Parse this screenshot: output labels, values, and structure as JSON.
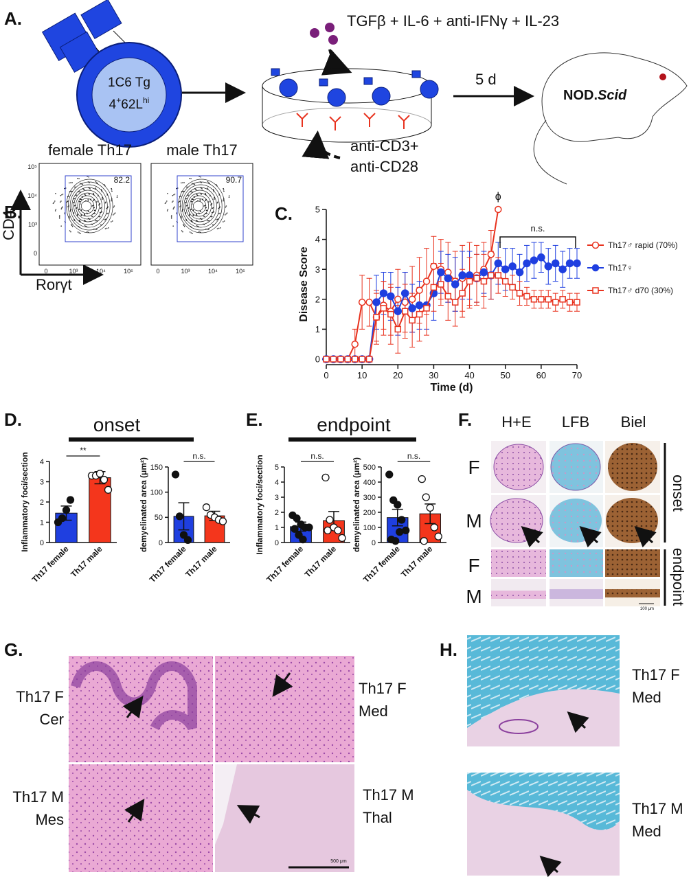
{
  "panel_a": {
    "label": "A.",
    "cell_line1": "1C6 Tg",
    "cell_line2": [
      "4",
      "+",
      "62L",
      "hi"
    ],
    "cytokines": "TGFβ + IL-6 + anti-IFNγ + IL-23",
    "duration": "5 d",
    "mouse": [
      "NOD.",
      "Scid"
    ],
    "stimulus": [
      "anti-CD3+",
      "anti-CD28"
    ]
  },
  "panel_b": {
    "label": "B.",
    "plots": [
      {
        "title": "female Th17",
        "gate": 82.2
      },
      {
        "title": "male Th17",
        "gate": 90.7
      }
    ],
    "y_axis": "CD4",
    "x_axis": "Rorγt",
    "yticks": [
      "10⁵",
      "10⁴",
      "10³",
      "0"
    ],
    "xticks": [
      "0",
      "10³",
      "10⁴",
      "10⁵"
    ]
  },
  "chart_data": [
    {
      "type": "line",
      "panel_label": "C.",
      "ylabel": "Disease Score",
      "xlabel": "Time (d)",
      "x": [
        0,
        2,
        4,
        6,
        8,
        10,
        12,
        14,
        16,
        18,
        20,
        22,
        24,
        26,
        28,
        30,
        32,
        34,
        36,
        38,
        40,
        42,
        44,
        46,
        48,
        50,
        52,
        54,
        56,
        58,
        60,
        62,
        64,
        66,
        68,
        70
      ],
      "xlim": [
        0,
        70
      ],
      "ylim": [
        0,
        5
      ],
      "xticks": [
        0,
        10,
        20,
        30,
        40,
        50,
        60,
        70
      ],
      "yticks": [
        0,
        1,
        2,
        3,
        4,
        5
      ],
      "annotations": [
        "ϕ",
        "n.s."
      ],
      "series": [
        {
          "name": "Th17♂ rapid (70%)",
          "color": "#e8321e",
          "marker": "open-circle",
          "values": [
            0,
            0,
            0,
            0,
            0.5,
            1.9,
            1.9,
            1.4,
            1.8,
            1.6,
            2.0,
            1.9,
            2.0,
            2.3,
            2.6,
            3.1,
            3.0,
            2.9,
            2.6,
            2.7,
            2.8,
            2.8,
            3.0,
            3.5,
            5.0,
            null,
            null,
            null,
            null,
            null,
            null,
            null,
            null,
            null,
            null,
            null
          ],
          "errors": [
            0,
            0,
            0,
            0,
            0.5,
            0.9,
            0.8,
            0.9,
            0.8,
            0.8,
            1.0,
            1.0,
            1.1,
            1.1,
            1.1,
            1.0,
            1.0,
            1.0,
            1.0,
            1.1,
            1.1,
            1.0,
            0.9,
            0.8,
            0,
            null,
            null,
            null,
            null,
            null,
            null,
            null,
            null,
            null,
            null,
            null
          ]
        },
        {
          "name": "Th17♀",
          "color": "#1f3fe0",
          "marker": "filled-circle",
          "values": [
            0,
            0,
            0,
            0,
            0,
            0,
            0,
            1.9,
            2.2,
            2.1,
            1.6,
            2.2,
            1.7,
            1.8,
            1.8,
            2.2,
            2.9,
            2.7,
            2.5,
            2.8,
            2.8,
            2.7,
            2.9,
            2.8,
            3.2,
            3.0,
            3.1,
            2.9,
            3.2,
            3.3,
            3.4,
            3.1,
            3.2,
            3.0,
            3.2,
            3.2
          ],
          "errors": [
            0,
            0,
            0,
            0,
            0,
            0,
            0,
            0.9,
            0.7,
            0.8,
            0.8,
            0.7,
            0.8,
            0.8,
            0.8,
            0.9,
            0.7,
            0.8,
            0.9,
            0.8,
            0.8,
            0.8,
            0.7,
            0.8,
            0.7,
            0.7,
            0.6,
            0.6,
            0.6,
            0.6,
            0.5,
            0.6,
            0.6,
            0.6,
            0.5,
            0.5
          ]
        },
        {
          "name": "Th17♂ d70 (30%)",
          "color": "#e8321e",
          "marker": "open-square",
          "values": [
            0,
            0,
            0,
            0,
            0,
            0,
            0,
            1.4,
            1.7,
            1.5,
            1.0,
            1.6,
            1.3,
            1.5,
            1.7,
            2.4,
            2.5,
            2.1,
            1.9,
            2.2,
            2.6,
            2.7,
            2.6,
            2.8,
            2.8,
            2.6,
            2.4,
            2.2,
            2.1,
            2.0,
            2.0,
            2.0,
            1.9,
            2.0,
            1.9,
            1.9
          ],
          "errors": [
            0,
            0,
            0,
            0,
            0,
            0,
            0,
            0.8,
            0.9,
            1.0,
            0.8,
            0.9,
            0.9,
            0.9,
            0.9,
            0.8,
            0.7,
            0.8,
            0.8,
            0.8,
            0.8,
            0.8,
            0.9,
            0.8,
            0.6,
            0.5,
            0.4,
            0.4,
            0.3,
            0.3,
            0.3,
            0.3,
            0.3,
            0.3,
            0.3,
            0.3
          ]
        }
      ]
    },
    {
      "type": "bar",
      "ylabel": "Inflammatory foci/section",
      "categories": [
        "Th17 female",
        "Th17 male"
      ],
      "values": [
        1.45,
        3.2
      ],
      "errors": [
        0.35,
        0.3
      ],
      "points": [
        [
          1.0,
          1.2,
          1.6,
          2.1
        ],
        [
          3.3,
          3.3,
          3.4,
          3.1,
          2.6
        ]
      ],
      "colors": [
        "#1f3fe0",
        "#f4361c"
      ],
      "point_fills": [
        "filled",
        "open"
      ],
      "ylim": [
        0,
        4
      ],
      "yticks": [
        0,
        1,
        2,
        3,
        4
      ],
      "annotation": "**"
    },
    {
      "type": "bar",
      "ylabel": "demyelinated area (μm²)",
      "categories": [
        "Th17 female",
        "Th17 male"
      ],
      "values": [
        52,
        53
      ],
      "errors": [
        27,
        9
      ],
      "points": [
        [
          135,
          52,
          15,
          5
        ],
        [
          70,
          55,
          50,
          45,
          42
        ]
      ],
      "colors": [
        "#1f3fe0",
        "#f4361c"
      ],
      "point_fills": [
        "filled",
        "open"
      ],
      "ylim": [
        0,
        150
      ],
      "yticks": [
        0,
        50,
        100,
        150
      ],
      "annotation": "n.s."
    },
    {
      "type": "bar",
      "ylabel": "Inflammatory foci/section",
      "categories": [
        "Th17 female",
        "Th17 male"
      ],
      "values": [
        1.05,
        1.45
      ],
      "errors": [
        0.3,
        0.6
      ],
      "points": [
        [
          1.8,
          1.6,
          1.2,
          1.0,
          1.0,
          0.9,
          0.5,
          0.2
        ],
        [
          4.3,
          1.5,
          1.0,
          0.8,
          0.3,
          0.8
        ]
      ],
      "colors": [
        "#1f3fe0",
        "#f4361c"
      ],
      "point_fills": [
        "filled",
        "open"
      ],
      "ylim": [
        0,
        5
      ],
      "yticks": [
        0,
        1,
        2,
        3,
        4,
        5
      ],
      "annotation": "n.s."
    },
    {
      "type": "bar",
      "ylabel": "demyelinated area (μm²)",
      "categories": [
        "Th17 female",
        "Th17 male"
      ],
      "values": [
        165,
        190
      ],
      "errors": [
        55,
        65
      ],
      "points": [
        [
          450,
          280,
          250,
          150,
          80,
          20,
          10,
          70
        ],
        [
          420,
          300,
          230,
          100,
          40,
          10
        ]
      ],
      "colors": [
        "#1f3fe0",
        "#f4361c"
      ],
      "point_fills": [
        "filled",
        "open"
      ],
      "ylim": [
        0,
        500
      ],
      "yticks": [
        0,
        100,
        200,
        300,
        400,
        500
      ],
      "annotation": "n.s."
    }
  ],
  "panel_d": {
    "label": "D.",
    "title": "onset"
  },
  "panel_e": {
    "label": "E.",
    "title": "endpoint"
  },
  "panel_f": {
    "label": "F.",
    "columns": [
      "H+E",
      "LFB",
      "Biel"
    ],
    "rows": [
      "F",
      "M",
      "F",
      "M"
    ],
    "groups": [
      "onset",
      "endpoint"
    ],
    "scale": "100 μm"
  },
  "panel_g": {
    "label": "G.",
    "images": [
      [
        "Th17 F",
        "Cer"
      ],
      [
        "Th17 F",
        "Med"
      ],
      [
        "Th17 M",
        "Mes"
      ],
      [
        "Th17 M",
        "Thal"
      ]
    ],
    "scale": "500 μm"
  },
  "panel_h": {
    "label": "H.",
    "images": [
      [
        "Th17 F",
        "Med"
      ],
      [
        "Th17 M",
        "Med"
      ]
    ]
  }
}
